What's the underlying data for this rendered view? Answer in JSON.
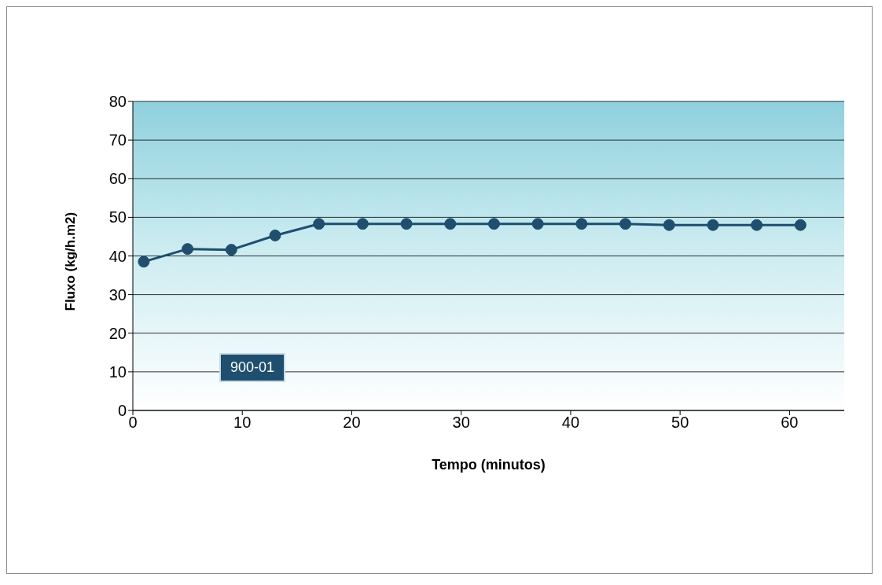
{
  "chart_data": {
    "type": "line",
    "xlabel": "Tempo (minutos)",
    "ylabel": "Fluxo (kg/h.m2)",
    "x": [
      1,
      5,
      9,
      13,
      17,
      21,
      25,
      29,
      33,
      37,
      41,
      45,
      49,
      53,
      57,
      61
    ],
    "series": [
      {
        "name": "900-01",
        "color": "#1f4e6e",
        "values": [
          38.5,
          41.8,
          41.6,
          45.3,
          48.3,
          48.3,
          48.3,
          48.3,
          48.3,
          48.3,
          48.3,
          48.3,
          48.0,
          48.0,
          48.0,
          48.0
        ]
      }
    ],
    "xlim": [
      0,
      65
    ],
    "xticks": [
      0,
      10,
      20,
      30,
      40,
      50,
      60
    ],
    "ylim": [
      0,
      80
    ],
    "yticks": [
      0,
      10,
      20,
      30,
      40,
      50,
      60,
      70,
      80
    ],
    "grid": "y",
    "legend": "left",
    "marker": "circle",
    "line_style": "solid"
  }
}
